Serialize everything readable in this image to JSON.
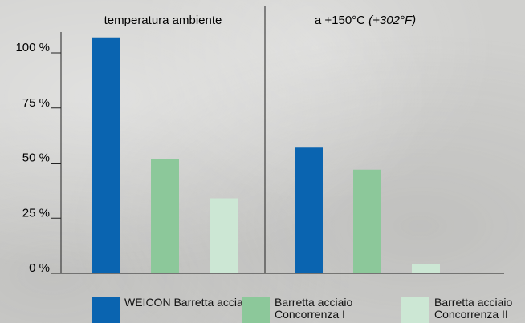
{
  "chart_data": {
    "type": "bar",
    "groups": [
      {
        "title": "temperatura ambiente",
        "title_suffix": ""
      },
      {
        "title": "a +150°C",
        "title_suffix": "(+302°F)"
      }
    ],
    "series": [
      {
        "name": "WEICON Barretta acciaio",
        "color": "#0a64b0",
        "values": [
          107,
          57
        ]
      },
      {
        "name": "Barretta acciaio Concorrenza I",
        "color": "#8cc89a",
        "values": [
          52,
          47
        ]
      },
      {
        "name": "Barretta acciaio Concorrenza II",
        "color": "#cce7d4",
        "values": [
          34,
          4
        ]
      }
    ],
    "y_ticks": [
      {
        "value": 0,
        "label": "0 %"
      },
      {
        "value": 25,
        "label": "25 %"
      },
      {
        "value": 50,
        "label": "50 %"
      },
      {
        "value": 75,
        "label": "75 %"
      },
      {
        "value": 100,
        "label": "100 %"
      }
    ],
    "ylim": [
      0,
      110
    ],
    "grid": false,
    "legend_position": "bottom"
  }
}
